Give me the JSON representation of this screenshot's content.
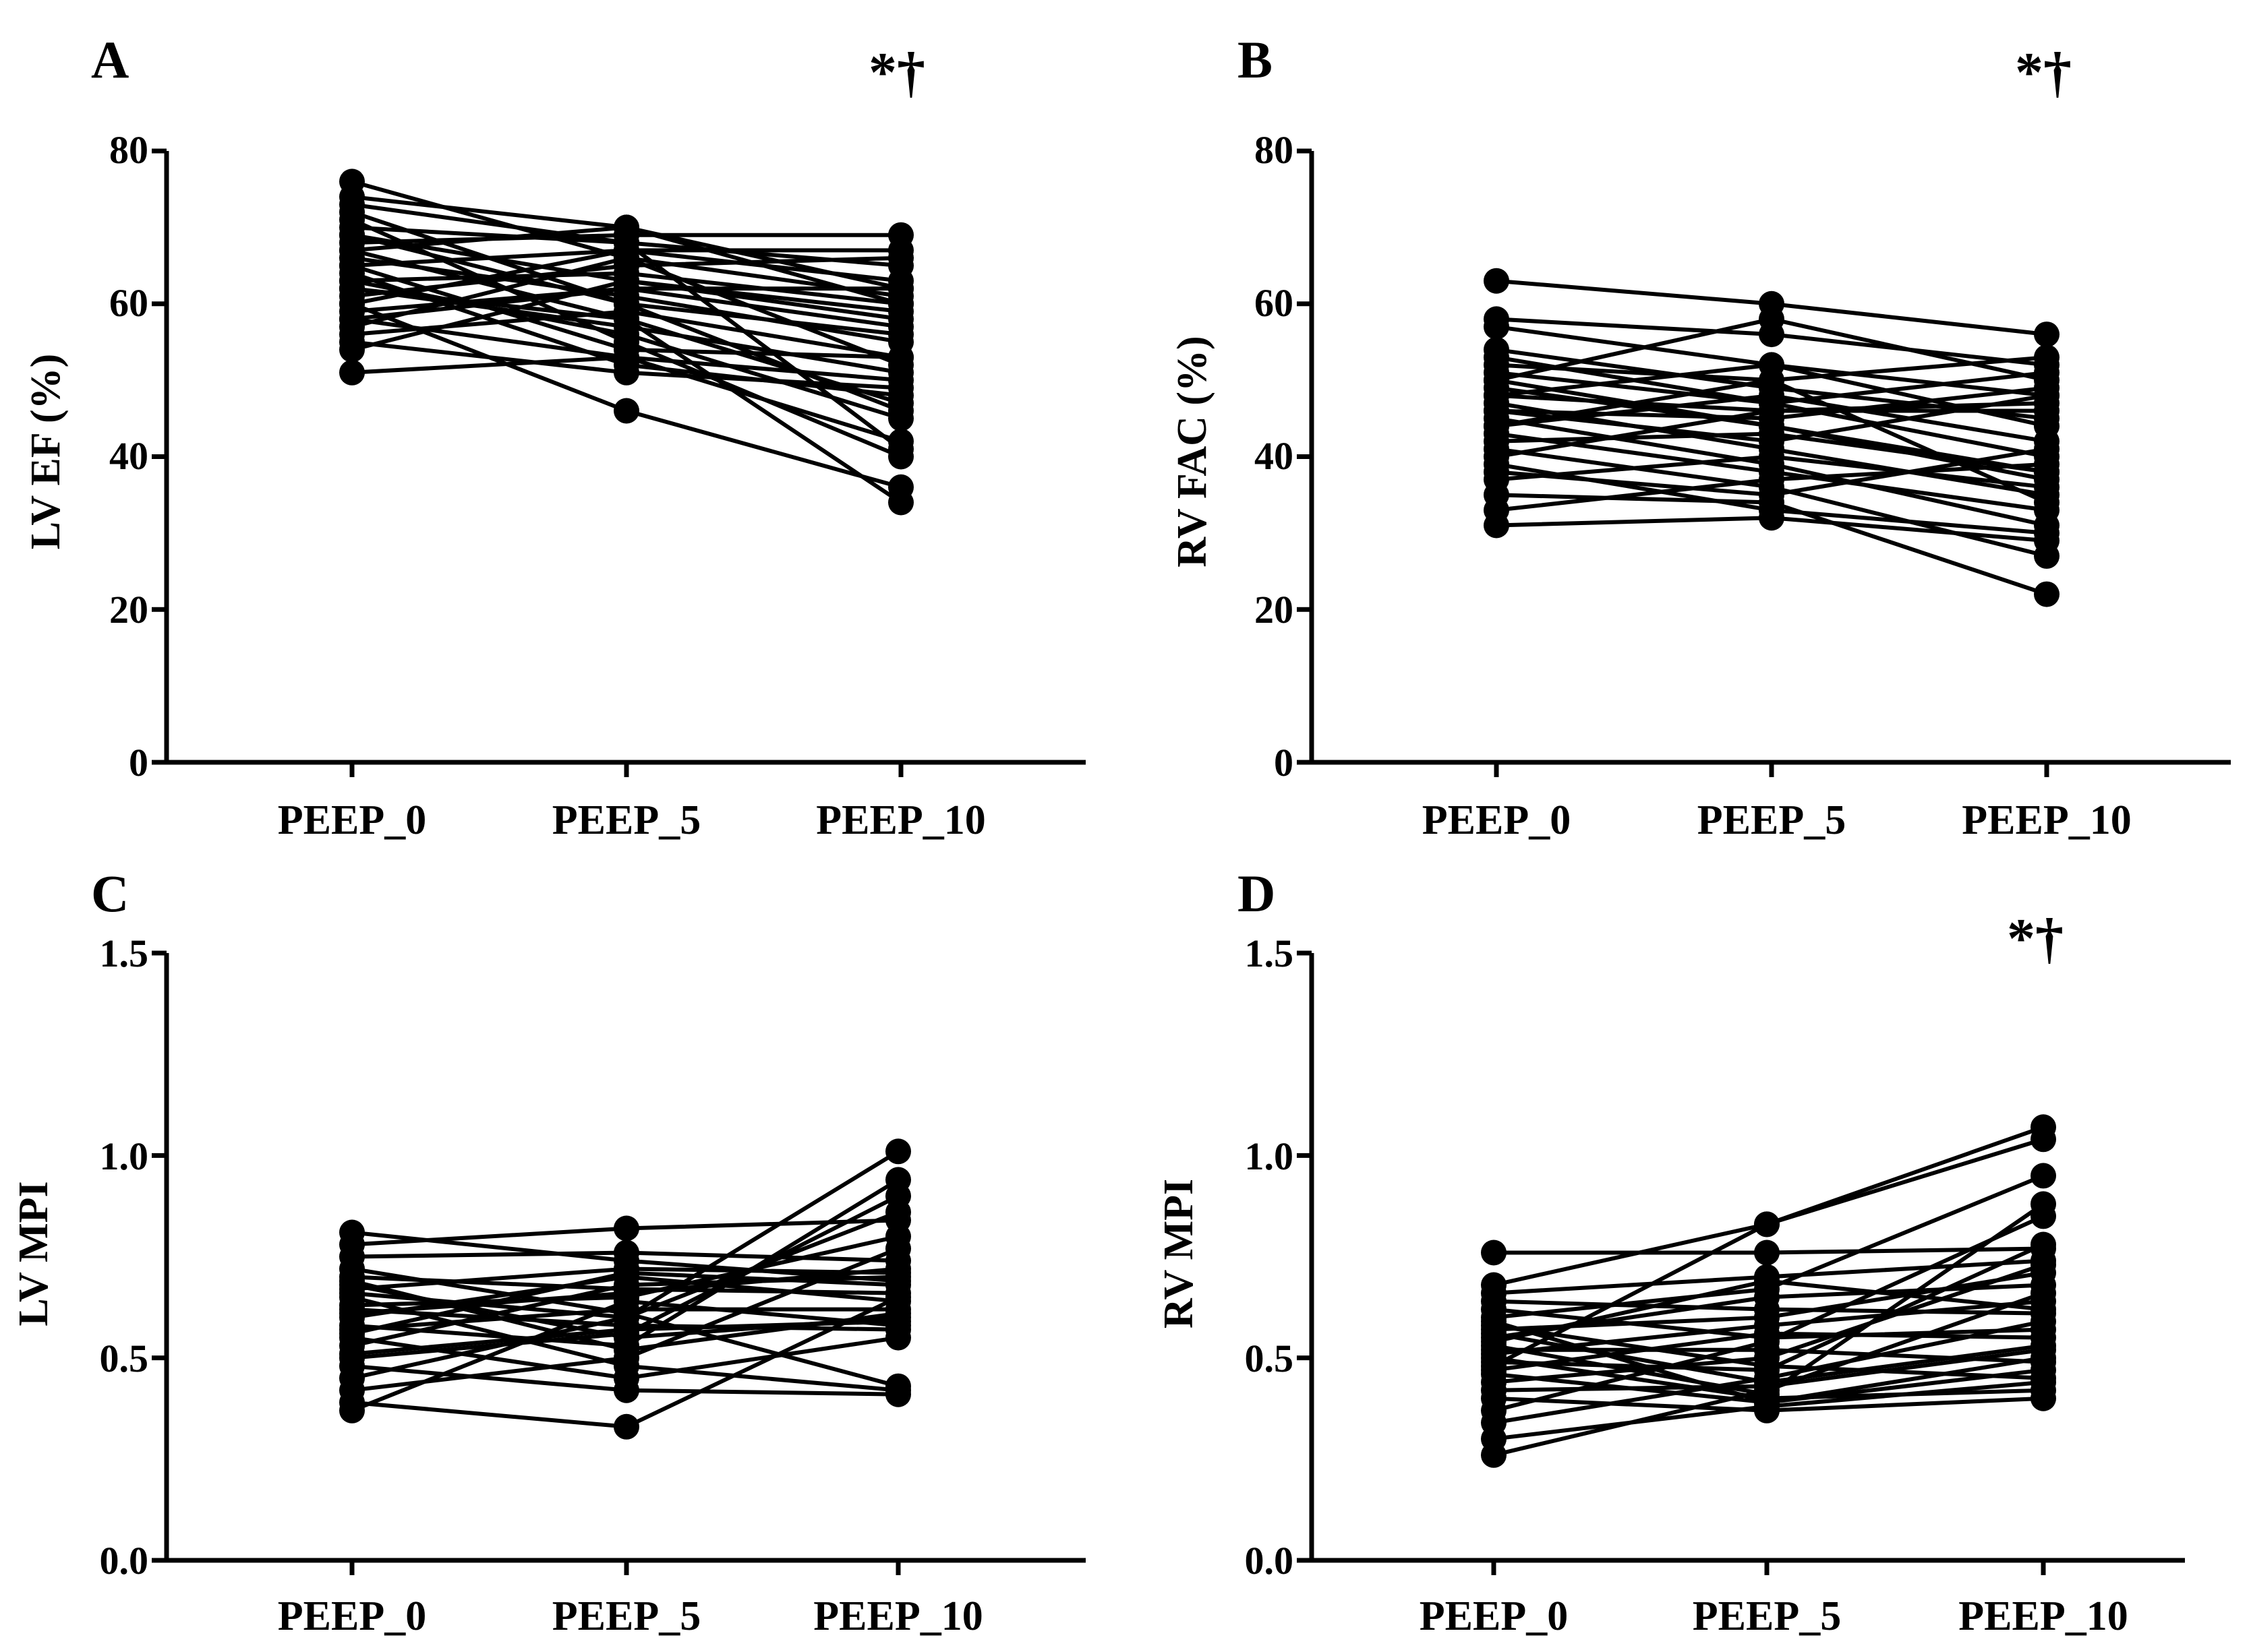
{
  "figure": {
    "panels": [
      {
        "letter": "A",
        "significance": "*†"
      },
      {
        "letter": "B",
        "significance": "*†"
      },
      {
        "letter": "C",
        "significance": ""
      },
      {
        "letter": "D",
        "significance": "*†"
      }
    ]
  },
  "colors": {
    "line": "#000000",
    "marker": "#000000",
    "background": "#ffffff"
  },
  "chart_data": [
    {
      "panel": "A",
      "type": "line",
      "title": "",
      "ylabel": "LV EF (%)",
      "xlabel": "",
      "categories": [
        "PEEP_0",
        "PEEP_5",
        "PEEP_10"
      ],
      "ylim": [
        0,
        80
      ],
      "yticks": [
        0,
        20,
        40,
        60,
        80
      ],
      "ytick_labels": [
        "0",
        "20",
        "40",
        "60",
        "80"
      ],
      "significance": "*†",
      "series": [
        {
          "values": [
            76,
            66,
            52
          ]
        },
        {
          "values": [
            74,
            70,
            62
          ]
        },
        {
          "values": [
            72,
            60,
            46
          ]
        },
        {
          "values": [
            71,
            55,
            40
          ]
        },
        {
          "values": [
            70,
            68,
            65
          ]
        },
        {
          "values": [
            69,
            63,
            58
          ]
        },
        {
          "values": [
            68,
            69,
            69
          ]
        },
        {
          "values": [
            67,
            58,
            34
          ]
        },
        {
          "values": [
            66,
            61,
            55
          ]
        },
        {
          "values": [
            65,
            67,
            63
          ]
        },
        {
          "values": [
            64,
            52,
            48
          ]
        },
        {
          "values": [
            63,
            64,
            60
          ]
        },
        {
          "values": [
            62,
            57,
            51
          ]
        },
        {
          "values": [
            61,
            65,
            66
          ]
        },
        {
          "values": [
            60,
            46,
            36
          ]
        },
        {
          "values": [
            59,
            62,
            57
          ]
        },
        {
          "values": [
            58,
            53,
            42
          ]
        },
        {
          "values": [
            57,
            66,
            61
          ]
        },
        {
          "values": [
            56,
            59,
            53
          ]
        },
        {
          "values": [
            55,
            51,
            49
          ]
        },
        {
          "values": [
            54,
            63,
            59
          ]
        },
        {
          "values": [
            51,
            53,
            50
          ]
        },
        {
          "values": [
            67,
            70,
            60
          ]
        },
        {
          "values": [
            63,
            56,
            45
          ]
        },
        {
          "values": [
            69,
            60,
            56
          ]
        },
        {
          "values": [
            60,
            67,
            67
          ]
        },
        {
          "values": [
            65,
            54,
            53
          ]
        },
        {
          "values": [
            58,
            62,
            62
          ]
        },
        {
          "values": [
            73,
            68,
            41
          ]
        },
        {
          "values": [
            62,
            58,
            47
          ]
        }
      ]
    },
    {
      "panel": "B",
      "type": "line",
      "title": "",
      "ylabel": "RV FAC (%)",
      "xlabel": "",
      "categories": [
        "PEEP_0",
        "PEEP_5",
        "PEEP_10"
      ],
      "ylim": [
        0,
        80
      ],
      "yticks": [
        0,
        20,
        40,
        60,
        80
      ],
      "ytick_labels": [
        "0",
        "20",
        "40",
        "60",
        "80"
      ],
      "significance": "*†",
      "series": [
        {
          "values": [
            63,
            60,
            56
          ]
        },
        {
          "values": [
            58,
            56,
            52
          ]
        },
        {
          "values": [
            57,
            52,
            48
          ]
        },
        {
          "values": [
            54,
            49,
            45
          ]
        },
        {
          "values": [
            52,
            50,
            53
          ]
        },
        {
          "values": [
            51,
            47,
            40
          ]
        },
        {
          "values": [
            50,
            58,
            50
          ]
        },
        {
          "values": [
            49,
            44,
            37
          ]
        },
        {
          "values": [
            48,
            46,
            46
          ]
        },
        {
          "values": [
            47,
            41,
            35
          ]
        },
        {
          "values": [
            46,
            45,
            49
          ]
        },
        {
          "values": [
            45,
            39,
            31
          ]
        },
        {
          "values": [
            44,
            48,
            42
          ]
        },
        {
          "values": [
            43,
            38,
            33
          ]
        },
        {
          "values": [
            42,
            43,
            38
          ]
        },
        {
          "values": [
            41,
            36,
            27
          ]
        },
        {
          "values": [
            40,
            46,
            47
          ]
        },
        {
          "values": [
            39,
            33,
            30
          ]
        },
        {
          "values": [
            37,
            40,
            36
          ]
        },
        {
          "values": [
            35,
            34,
            22
          ]
        },
        {
          "values": [
            33,
            37,
            39
          ]
        },
        {
          "values": [
            31,
            32,
            29
          ]
        },
        {
          "values": [
            48,
            52,
            44
          ]
        },
        {
          "values": [
            46,
            42,
            48
          ]
        },
        {
          "values": [
            50,
            44,
            38
          ]
        },
        {
          "values": [
            44,
            50,
            34
          ]
        },
        {
          "values": [
            38,
            35,
            41
          ]
        },
        {
          "values": [
            53,
            47,
            51
          ]
        }
      ]
    },
    {
      "panel": "C",
      "type": "line",
      "title": "",
      "ylabel": "LV MPI",
      "xlabel": "",
      "categories": [
        "PEEP_0",
        "PEEP_5",
        "PEEP_10"
      ],
      "ylim": [
        0,
        1.5
      ],
      "yticks": [
        0,
        0.5,
        1.0,
        1.5
      ],
      "ytick_labels": [
        "0.0",
        "0.5",
        "1.0",
        "1.5"
      ],
      "significance": "",
      "series": [
        {
          "values": [
            0.81,
            0.74,
            0.69
          ]
        },
        {
          "values": [
            0.78,
            0.82,
            0.84
          ]
        },
        {
          "values": [
            0.75,
            0.76,
            0.74
          ]
        },
        {
          "values": [
            0.72,
            0.61,
            0.43
          ]
        },
        {
          "values": [
            0.7,
            0.67,
            0.66
          ]
        },
        {
          "values": [
            0.68,
            0.55,
            0.6
          ]
        },
        {
          "values": [
            0.67,
            0.72,
            0.71
          ]
        },
        {
          "values": [
            0.65,
            0.48,
            0.42
          ]
        },
        {
          "values": [
            0.63,
            0.65,
            0.8
          ]
        },
        {
          "values": [
            0.62,
            0.58,
            0.57
          ]
        },
        {
          "values": [
            0.6,
            0.7,
            0.64
          ]
        },
        {
          "values": [
            0.58,
            0.53,
            0.94
          ]
        },
        {
          "values": [
            0.57,
            0.62,
            0.62
          ]
        },
        {
          "values": [
            0.55,
            0.45,
            0.55
          ]
        },
        {
          "values": [
            0.53,
            0.68,
            0.7
          ]
        },
        {
          "values": [
            0.51,
            0.57,
            0.59
          ]
        },
        {
          "values": [
            0.48,
            0.42,
            0.41
          ]
        },
        {
          "values": [
            0.45,
            0.6,
            0.86
          ]
        },
        {
          "values": [
            0.42,
            0.5,
            0.77
          ]
        },
        {
          "values": [
            0.39,
            0.33,
            0.65
          ]
        },
        {
          "values": [
            0.37,
            0.64,
            0.58
          ]
        },
        {
          "values": [
            0.66,
            0.6,
            1.01
          ]
        },
        {
          "values": [
            0.61,
            0.66,
            0.72
          ]
        },
        {
          "values": [
            0.56,
            0.71,
            0.68
          ]
        },
        {
          "values": [
            0.69,
            0.52,
            0.61
          ]
        },
        {
          "values": [
            0.5,
            0.56,
            0.9
          ]
        }
      ]
    },
    {
      "panel": "D",
      "type": "line",
      "title": "",
      "ylabel": "RV MPI",
      "xlabel": "",
      "categories": [
        "PEEP_0",
        "PEEP_5",
        "PEEP_10"
      ],
      "ylim": [
        0,
        1.5
      ],
      "yticks": [
        0,
        0.5,
        1.0,
        1.5
      ],
      "ytick_labels": [
        "0.0",
        "0.5",
        "1.0",
        "1.5"
      ],
      "significance": "*†",
      "series": [
        {
          "values": [
            0.76,
            0.76,
            0.77
          ]
        },
        {
          "values": [
            0.68,
            0.83,
            1.07
          ]
        },
        {
          "values": [
            0.66,
            0.7,
            0.74
          ]
        },
        {
          "values": [
            0.64,
            0.62,
            0.61
          ]
        },
        {
          "values": [
            0.62,
            0.55,
            0.57
          ]
        },
        {
          "values": [
            0.6,
            0.67,
            0.95
          ]
        },
        {
          "values": [
            0.58,
            0.48,
            0.45
          ]
        },
        {
          "values": [
            0.57,
            0.6,
            0.71
          ]
        },
        {
          "values": [
            0.56,
            0.44,
            0.53
          ]
        },
        {
          "values": [
            0.55,
            0.65,
            0.68
          ]
        },
        {
          "values": [
            0.53,
            0.41,
            0.88
          ]
        },
        {
          "values": [
            0.52,
            0.52,
            0.49
          ]
        },
        {
          "values": [
            0.51,
            0.58,
            0.64
          ]
        },
        {
          "values": [
            0.5,
            0.4,
            0.42
          ]
        },
        {
          "values": [
            0.49,
            0.47,
            0.78
          ]
        },
        {
          "values": [
            0.47,
            0.56,
            0.55
          ]
        },
        {
          "values": [
            0.46,
            0.39,
            0.47
          ]
        },
        {
          "values": [
            0.44,
            0.5,
            0.73
          ]
        },
        {
          "values": [
            0.42,
            0.43,
            0.52
          ]
        },
        {
          "values": [
            0.4,
            0.37,
            0.4
          ]
        },
        {
          "values": [
            0.37,
            0.54,
            0.85
          ]
        },
        {
          "values": [
            0.34,
            0.45,
            0.59
          ]
        },
        {
          "values": [
            0.3,
            0.38,
            0.44
          ]
        },
        {
          "values": [
            0.26,
            0.42,
            0.66
          ]
        },
        {
          "values": [
            0.48,
            0.83,
            1.04
          ]
        },
        {
          "values": [
            0.59,
            0.39,
            0.5
          ]
        },
        {
          "values": [
            0.54,
            0.69,
            0.62
          ]
        }
      ]
    }
  ]
}
